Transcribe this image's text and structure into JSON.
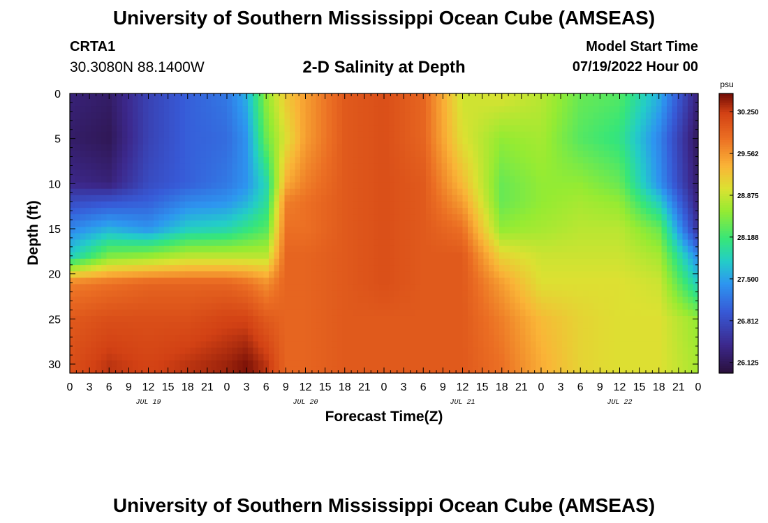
{
  "header": {
    "title": "University of Southern Mississippi Ocean Cube (AMSEAS)",
    "station_id": "CRTA1",
    "coordinates": "30.3080N  88.1400W",
    "subtitle": "2-D Salinity at Depth",
    "model_start_label": "Model Start Time",
    "model_start_value": "07/19/2022 Hour 00"
  },
  "footer": {
    "title": "University of Southern Mississippi Ocean Cube (AMSEAS)"
  },
  "chart_data": {
    "type": "heatmap",
    "title": "2-D Salinity at Depth",
    "xlabel": "Forecast Time(Z)",
    "ylabel": "Depth (ft)",
    "x_range_hours": [
      0,
      96
    ],
    "ylim": [
      0,
      31
    ],
    "y_inverted": true,
    "x_tick_hours": [
      0,
      3,
      6,
      9,
      12,
      15,
      18,
      21,
      24,
      27,
      30,
      33,
      36,
      39,
      42,
      45,
      48,
      51,
      54,
      57,
      60,
      63,
      66,
      69,
      72,
      75,
      78,
      81,
      84,
      87,
      90,
      93,
      96
    ],
    "x_tick_labels": [
      "0",
      "3",
      "6",
      "9",
      "12",
      "15",
      "18",
      "21",
      "0",
      "3",
      "6",
      "9",
      "12",
      "15",
      "18",
      "21",
      "0",
      "3",
      "6",
      "9",
      "12",
      "15",
      "18",
      "21",
      "0",
      "3",
      "6",
      "9",
      "12",
      "15",
      "18",
      "21",
      "0"
    ],
    "date_labels": [
      {
        "text": "JUL 19",
        "hour": 12
      },
      {
        "text": "JUL 20",
        "hour": 36
      },
      {
        "text": "JUL 21",
        "hour": 60
      },
      {
        "text": "JUL 22",
        "hour": 84
      }
    ],
    "y_ticks": [
      0,
      5,
      10,
      15,
      20,
      25,
      30
    ],
    "y_tick_labels": [
      "0",
      "5",
      "10",
      "15",
      "20",
      "25",
      "30"
    ],
    "colorbar": {
      "unit": "psu",
      "min": 25.95,
      "max": 30.55,
      "tick_values": [
        30.25,
        29.562,
        28.875,
        28.188,
        27.5,
        26.812,
        26.125
      ],
      "tick_labels": [
        "30.250",
        "29.562",
        "28.875",
        "28.188",
        "27.500",
        "26.812",
        "26.125"
      ]
    },
    "time_hours": [
      0,
      6,
      12,
      18,
      24,
      27,
      30,
      33,
      36,
      42,
      48,
      54,
      60,
      66,
      72,
      78,
      84,
      90,
      96
    ],
    "depth_ft": [
      0,
      5,
      10,
      12,
      15,
      18,
      21,
      25,
      30,
      31
    ],
    "salinity_psu": [
      [
        26.3,
        26.2,
        26.4,
        26.8,
        27.3,
        27.8,
        29.7,
        30.0,
        30.1,
        30.1
      ],
      [
        26.2,
        26.1,
        26.3,
        26.9,
        27.6,
        28.5,
        29.8,
        30.1,
        30.3,
        30.3
      ],
      [
        26.7,
        26.7,
        26.8,
        27.0,
        27.4,
        28.6,
        29.9,
        30.1,
        30.2,
        30.2
      ],
      [
        27.0,
        27.0,
        27.0,
        27.3,
        27.8,
        28.8,
        29.9,
        30.1,
        30.3,
        30.3
      ],
      [
        27.2,
        27.1,
        27.2,
        27.4,
        27.9,
        28.8,
        29.9,
        30.2,
        30.4,
        30.4
      ],
      [
        27.6,
        27.4,
        27.4,
        27.6,
        28.1,
        28.8,
        29.8,
        30.2,
        30.5,
        30.5
      ],
      [
        28.6,
        28.4,
        27.9,
        28.0,
        28.3,
        28.8,
        29.6,
        30.0,
        30.3,
        30.3
      ],
      [
        29.2,
        29.0,
        29.4,
        29.7,
        29.8,
        29.9,
        29.9,
        29.9,
        29.9,
        29.9
      ],
      [
        29.5,
        29.5,
        29.7,
        29.8,
        29.8,
        29.9,
        29.9,
        29.9,
        29.9,
        29.9
      ],
      [
        30.0,
        30.0,
        30.0,
        30.0,
        30.0,
        30.0,
        30.0,
        30.0,
        30.0,
        30.0
      ],
      [
        30.1,
        30.1,
        30.1,
        30.1,
        30.1,
        30.1,
        30.1,
        30.0,
        30.0,
        30.0
      ],
      [
        29.9,
        29.9,
        30.0,
        30.0,
        30.0,
        30.0,
        30.0,
        30.0,
        30.0,
        30.0
      ],
      [
        28.9,
        29.0,
        29.3,
        29.5,
        29.8,
        30.0,
        30.0,
        30.0,
        30.0,
        30.0
      ],
      [
        29.0,
        28.6,
        28.4,
        28.4,
        28.6,
        29.1,
        29.5,
        29.7,
        29.8,
        29.8
      ],
      [
        28.8,
        28.7,
        28.6,
        28.6,
        28.7,
        28.9,
        29.0,
        29.3,
        29.4,
        29.4
      ],
      [
        28.4,
        28.3,
        28.6,
        28.7,
        28.8,
        28.9,
        29.0,
        29.1,
        29.1,
        29.1
      ],
      [
        28.3,
        28.1,
        28.4,
        28.6,
        28.8,
        28.9,
        29.0,
        29.0,
        29.0,
        29.0
      ],
      [
        27.6,
        27.3,
        27.4,
        27.8,
        28.4,
        28.7,
        28.9,
        29.0,
        29.0,
        29.0
      ],
      [
        26.3,
        26.1,
        26.2,
        26.3,
        26.5,
        27.3,
        27.8,
        28.6,
        28.7,
        28.7
      ]
    ]
  }
}
